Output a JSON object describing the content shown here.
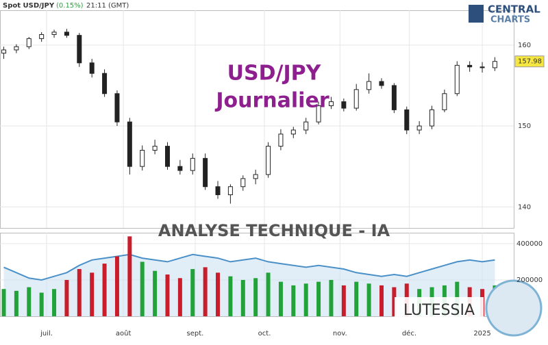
{
  "header": {
    "symbol": "Spot USD/JPY",
    "change": "(0.15%)",
    "time": "21:11 (GMT)",
    "logo_top": "CENTRAL",
    "logo_bottom": "CHARTS"
  },
  "overlay": {
    "title": "USD/JPY",
    "subtitle": "Journalier",
    "analysis": "ANALYSE TECHNIQUE - IA",
    "brand": "LUTESSIA"
  },
  "chart_data": {
    "type": "candlestick",
    "open": [
      159.0,
      159.4,
      159.8,
      160.8,
      161.3,
      161.6,
      161.2,
      157.8,
      156.5,
      154.0,
      150.5,
      145.0,
      147.0,
      147.5,
      145.0,
      144.5,
      146.0,
      142.5,
      141.5,
      142.5,
      143.5,
      144.0,
      147.5,
      149.0,
      149.5,
      150.5,
      152.5,
      153.0,
      152.2,
      154.5,
      155.5,
      155.0,
      152.0,
      149.5,
      150.0,
      152.0,
      154.0,
      157.5,
      157.3,
      157.2
    ],
    "high": [
      159.8,
      160.1,
      161.0,
      161.6,
      161.9,
      162.0,
      161.5,
      158.3,
      157.0,
      154.4,
      151.0,
      147.6,
      148.3,
      148.0,
      145.8,
      146.6,
      146.6,
      143.2,
      142.8,
      143.9,
      144.6,
      148.0,
      149.6,
      149.9,
      151.0,
      153.0,
      153.6,
      153.4,
      155.2,
      156.5,
      155.9,
      155.3,
      152.4,
      150.6,
      152.5,
      154.5,
      158.0,
      158.0,
      157.9,
      158.5
    ],
    "low": [
      158.3,
      159.0,
      159.5,
      160.4,
      160.9,
      160.9,
      157.3,
      156.0,
      153.6,
      150.0,
      144.0,
      144.5,
      146.5,
      144.6,
      144.0,
      144.0,
      142.1,
      141.0,
      140.4,
      142.0,
      142.8,
      143.6,
      147.0,
      148.5,
      149.0,
      150.2,
      152.1,
      151.8,
      151.9,
      154.0,
      154.6,
      151.6,
      149.0,
      149.0,
      149.6,
      151.7,
      153.7,
      156.7,
      156.6,
      156.8
    ],
    "close": [
      159.4,
      159.8,
      160.8,
      161.3,
      161.6,
      161.2,
      157.8,
      156.5,
      154.0,
      150.5,
      145.0,
      147.0,
      147.5,
      145.0,
      144.5,
      146.0,
      142.5,
      141.5,
      142.5,
      143.5,
      144.0,
      147.5,
      149.0,
      149.5,
      150.5,
      152.5,
      153.0,
      152.2,
      154.5,
      155.5,
      155.0,
      152.0,
      149.5,
      150.0,
      152.0,
      154.0,
      157.5,
      157.3,
      157.2,
      157.98
    ],
    "volume": [
      150000,
      140000,
      160000,
      130000,
      150000,
      200000,
      260000,
      240000,
      290000,
      330000,
      440000,
      300000,
      250000,
      230000,
      210000,
      260000,
      270000,
      240000,
      220000,
      200000,
      210000,
      240000,
      190000,
      170000,
      180000,
      190000,
      200000,
      170000,
      190000,
      180000,
      170000,
      160000,
      180000,
      150000,
      160000,
      170000,
      190000,
      160000,
      150000,
      170000
    ],
    "indicator": [
      270000,
      240000,
      210000,
      200000,
      220000,
      240000,
      280000,
      310000,
      320000,
      330000,
      340000,
      320000,
      310000,
      300000,
      320000,
      340000,
      330000,
      320000,
      300000,
      310000,
      320000,
      300000,
      290000,
      280000,
      270000,
      280000,
      270000,
      260000,
      240000,
      230000,
      220000,
      230000,
      220000,
      240000,
      260000,
      280000,
      300000,
      310000,
      300000,
      310000
    ],
    "last_price": 157.98,
    "up_color": "#22a33a",
    "down_color": "#c81e2b",
    "candle_color": "#222222",
    "xlim": [
      -0.3,
      40.5
    ],
    "xticks": [
      {
        "value": 3.4,
        "label": "juil."
      },
      {
        "value": 9.5,
        "label": "août"
      },
      {
        "value": 15.2,
        "label": "sept."
      },
      {
        "value": 20.7,
        "label": "oct."
      },
      {
        "value": 26.7,
        "label": "nov."
      },
      {
        "value": 32.2,
        "label": "déc."
      },
      {
        "value": 38.0,
        "label": "2025"
      }
    ],
    "ylim": [
      137.4,
      164.3
    ],
    "yticks": [
      140,
      150,
      160
    ],
    "vlim": [
      0,
      460000
    ],
    "vticks": [
      200000,
      400000
    ],
    "grid": true
  }
}
